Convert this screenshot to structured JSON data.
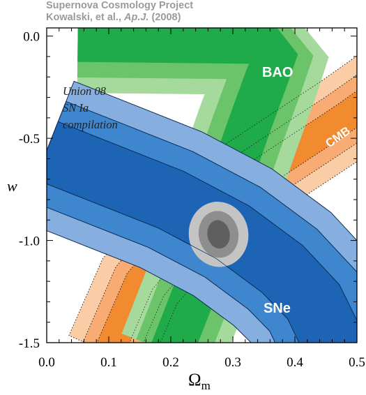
{
  "header": {
    "line1": "Supernova Cosmology Project",
    "line2_pre": "Kowalski, et al., ",
    "line2_journal": "Ap.J.",
    "line2_post": " (2008)"
  },
  "annotation": [
    "Union 08",
    "SN Ia",
    "compilation"
  ],
  "chart_data": {
    "type": "contour",
    "title": "",
    "xlabel": "Ω",
    "xlabel_sub": "m",
    "ylabel": "w",
    "xlim": [
      0.0,
      0.5
    ],
    "ylim": [
      -1.5,
      0.04
    ],
    "xticks": [
      0.0,
      0.1,
      0.2,
      0.3,
      0.4,
      0.5
    ],
    "xtick_labels": [
      "0.0",
      "0.1",
      "0.2",
      "0.3",
      "0.4",
      "0.5"
    ],
    "yticks": [
      0.0,
      -0.5,
      -1.0,
      -1.5
    ],
    "ytick_labels": [
      "0.0",
      "-0.5",
      "-1.0",
      "-1.5"
    ],
    "colors": {
      "cmb": [
        "#fbcda6",
        "#f8ab72",
        "#f28a2f"
      ],
      "bao": [
        "#a6d99c",
        "#6cc46a",
        "#1fab4a"
      ],
      "sne": [
        "#86aede",
        "#3e86cd",
        "#1d64b4"
      ],
      "combined": [
        "#c4c4c4",
        "#8e8e8e",
        "#5f5f5f"
      ]
    },
    "series": [
      {
        "name": "CMB",
        "center_line": [
          [
            0.1,
            -1.55
          ],
          [
            0.15,
            -1.2
          ],
          [
            0.22,
            -0.95
          ],
          [
            0.3,
            -0.76
          ],
          [
            0.37,
            -0.62
          ],
          [
            0.43,
            -0.5
          ],
          [
            0.48,
            -0.4
          ],
          [
            0.55,
            -0.25
          ]
        ],
        "widths": [
          0.07,
          0.045,
          0.024
        ]
      },
      {
        "name": "BAO",
        "upper_left_edge": [
          [
            0.0,
            -0.01
          ],
          [
            0.0,
            -0.03
          ]
        ],
        "center_line": [
          [
            0.2,
            -1.55
          ],
          [
            0.245,
            -1.2
          ],
          [
            0.285,
            -0.8
          ],
          [
            0.325,
            -0.45
          ],
          [
            0.355,
            -0.2
          ],
          [
            0.37,
            -0.08
          ],
          [
            0.36,
            -0.03
          ],
          [
            0.05,
            -0.02
          ]
        ],
        "widths": [
          0.085,
          0.06,
          0.035
        ]
      },
      {
        "name": "SNe",
        "center_line": [
          [
            0.0,
            -0.56
          ],
          [
            0.1,
            -0.68
          ],
          [
            0.2,
            -0.8
          ],
          [
            0.3,
            -0.96
          ],
          [
            0.38,
            -1.14
          ],
          [
            0.43,
            -1.3
          ],
          [
            0.47,
            -1.55
          ]
        ],
        "widths": [
          0.12,
          0.085,
          0.05
        ]
      },
      {
        "name": "combined",
        "center": [
          0.277,
          -0.97
        ],
        "radii": [
          [
            0.048,
            0.16
          ],
          [
            0.032,
            0.115
          ],
          [
            0.018,
            0.07
          ]
        ]
      }
    ]
  }
}
